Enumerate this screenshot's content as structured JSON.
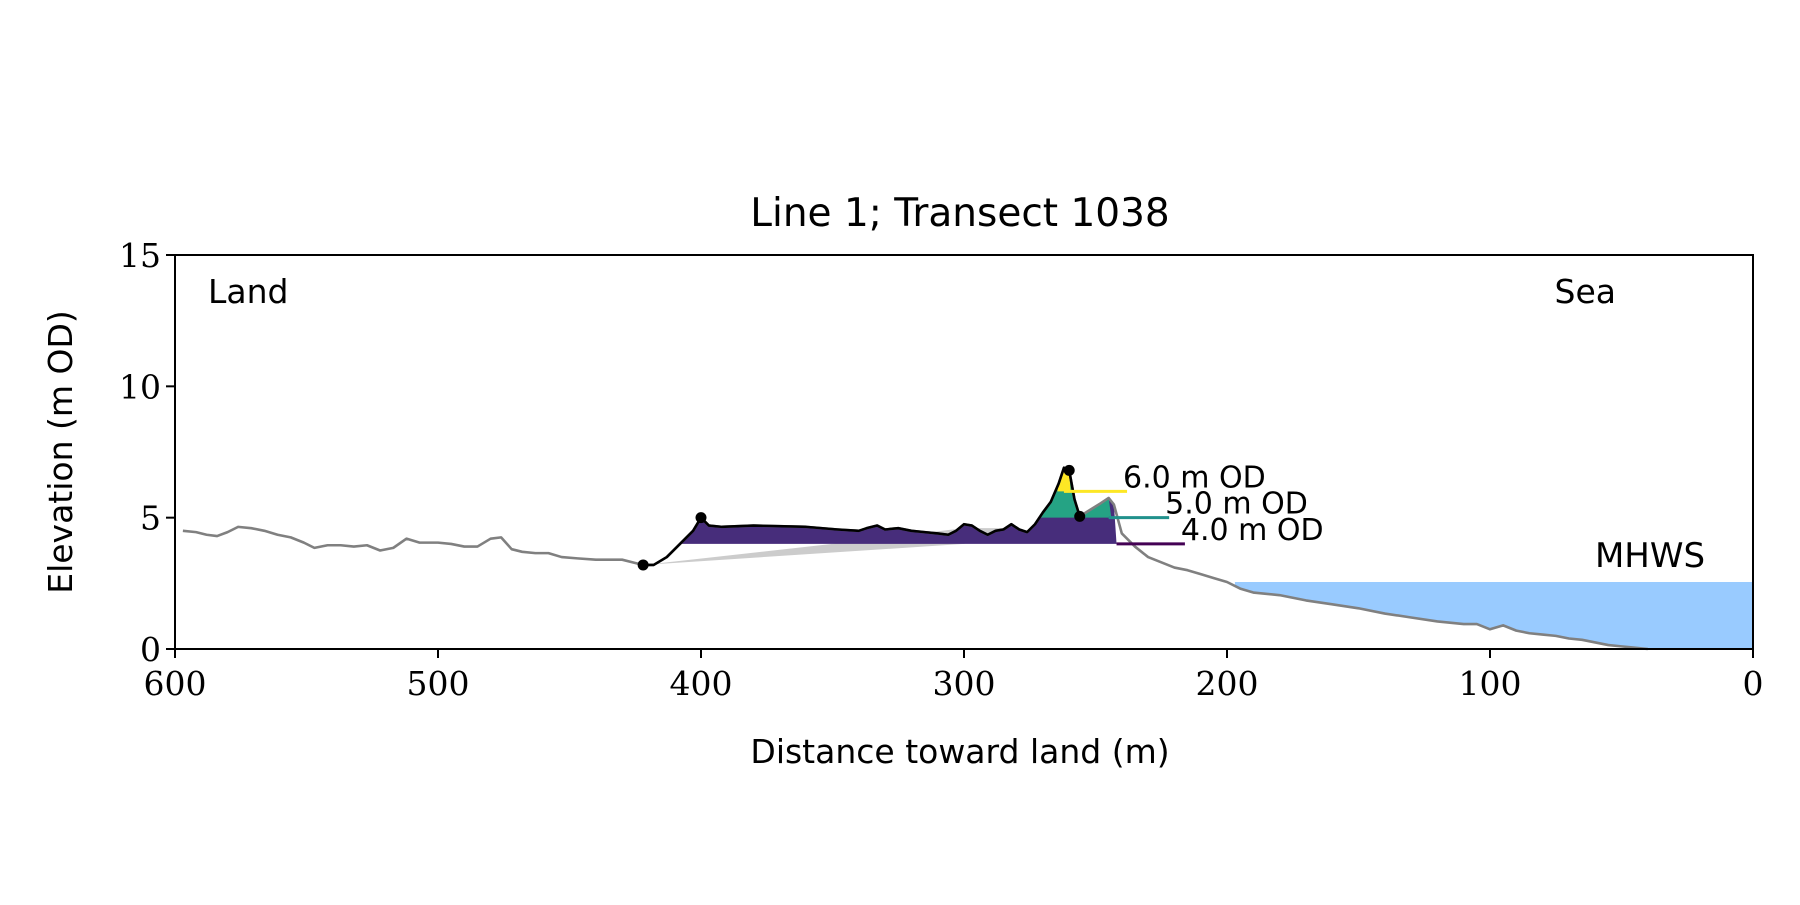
{
  "chart_data": {
    "type": "area",
    "title": "Line 1; Transect 1038",
    "xlabel": "Distance toward land (m)",
    "ylabel": "Elevation (m OD)",
    "xlim": [
      600,
      0
    ],
    "ylim": [
      0,
      15
    ],
    "x_ticks": [
      600,
      500,
      400,
      300,
      200,
      100,
      0
    ],
    "y_ticks": [
      0,
      5,
      10,
      15
    ],
    "grid": false,
    "corner_labels": {
      "land": "Land",
      "sea": "Sea"
    },
    "mhws": {
      "label": "MHWS",
      "elevation": 2.55,
      "x_start": 197,
      "x_end": 0
    },
    "thresholds": [
      {
        "label": "4.0 m OD",
        "elevation": 4.0,
        "x_start": 242,
        "x_end": 216,
        "color": "#440154"
      },
      {
        "label": "5.0 m OD",
        "elevation": 5.0,
        "x_start": 245,
        "x_end": 222,
        "color": "#21918c"
      },
      {
        "label": "6.0 m OD",
        "elevation": 6.0,
        "x_start": 262,
        "x_end": 238,
        "color": "#fde725"
      }
    ],
    "fill_colors": {
      "4.0": "#472d7b",
      "5.0": "#25a384",
      "6.0": "#fde725",
      "baseline_wedge": "#cccccc",
      "mhws": "#99cbff"
    },
    "profile": [
      [
        597,
        4.5
      ],
      [
        592,
        4.45
      ],
      [
        588,
        4.35
      ],
      [
        584,
        4.3
      ],
      [
        580,
        4.45
      ],
      [
        576,
        4.65
      ],
      [
        571,
        4.6
      ],
      [
        566,
        4.5
      ],
      [
        561,
        4.35
      ],
      [
        556,
        4.25
      ],
      [
        551,
        4.05
      ],
      [
        547,
        3.85
      ],
      [
        542,
        3.95
      ],
      [
        537,
        3.95
      ],
      [
        532,
        3.9
      ],
      [
        527,
        3.95
      ],
      [
        522,
        3.75
      ],
      [
        517,
        3.85
      ],
      [
        512,
        4.2
      ],
      [
        507,
        4.05
      ],
      [
        500,
        4.05
      ],
      [
        495,
        4.0
      ],
      [
        490,
        3.9
      ],
      [
        485,
        3.9
      ],
      [
        480,
        4.2
      ],
      [
        476,
        4.25
      ],
      [
        472,
        3.8
      ],
      [
        468,
        3.7
      ],
      [
        463,
        3.65
      ],
      [
        458,
        3.65
      ],
      [
        453,
        3.5
      ],
      [
        447,
        3.45
      ],
      [
        440,
        3.4
      ],
      [
        430,
        3.4
      ],
      [
        422,
        3.2
      ],
      [
        418,
        3.2
      ],
      [
        413,
        3.5
      ],
      [
        408,
        4.0
      ],
      [
        403,
        4.5
      ],
      [
        400,
        5.0
      ],
      [
        397,
        4.7
      ],
      [
        392,
        4.65
      ],
      [
        380,
        4.7
      ],
      [
        360,
        4.65
      ],
      [
        348,
        4.55
      ],
      [
        340,
        4.5
      ],
      [
        337,
        4.6
      ],
      [
        333,
        4.7
      ],
      [
        330,
        4.55
      ],
      [
        325,
        4.6
      ],
      [
        320,
        4.5
      ],
      [
        315,
        4.45
      ],
      [
        310,
        4.4
      ],
      [
        306,
        4.35
      ],
      [
        303,
        4.5
      ],
      [
        300,
        4.75
      ],
      [
        297,
        4.7
      ],
      [
        294,
        4.5
      ],
      [
        291,
        4.35
      ],
      [
        288,
        4.5
      ],
      [
        285,
        4.55
      ],
      [
        282,
        4.75
      ],
      [
        279,
        4.55
      ],
      [
        276,
        4.45
      ],
      [
        273,
        4.75
      ],
      [
        270,
        5.2
      ],
      [
        267,
        5.6
      ],
      [
        264,
        6.3
      ],
      [
        262,
        6.9
      ],
      [
        260,
        6.8
      ],
      [
        258,
        5.7
      ],
      [
        256,
        5.05
      ],
      [
        252,
        5.3
      ],
      [
        248,
        5.55
      ],
      [
        245,
        5.75
      ],
      [
        243,
        5.5
      ],
      [
        240,
        4.4
      ],
      [
        235,
        3.9
      ],
      [
        230,
        3.5
      ],
      [
        225,
        3.3
      ],
      [
        220,
        3.1
      ],
      [
        215,
        3.0
      ],
      [
        210,
        2.85
      ],
      [
        205,
        2.7
      ],
      [
        200,
        2.55
      ],
      [
        195,
        2.3
      ],
      [
        190,
        2.15
      ],
      [
        180,
        2.05
      ],
      [
        170,
        1.85
      ],
      [
        160,
        1.7
      ],
      [
        150,
        1.55
      ],
      [
        140,
        1.35
      ],
      [
        130,
        1.2
      ],
      [
        120,
        1.05
      ],
      [
        110,
        0.95
      ],
      [
        105,
        0.95
      ],
      [
        100,
        0.75
      ],
      [
        95,
        0.9
      ],
      [
        90,
        0.7
      ],
      [
        85,
        0.6
      ],
      [
        80,
        0.55
      ],
      [
        75,
        0.5
      ],
      [
        70,
        0.4
      ],
      [
        65,
        0.35
      ],
      [
        60,
        0.25
      ],
      [
        55,
        0.15
      ],
      [
        50,
        0.1
      ],
      [
        45,
        0.05
      ],
      [
        40,
        0.0
      ]
    ],
    "dune_points": [
      [
        422,
        3.2
      ],
      [
        400,
        5.0
      ],
      [
        260,
        6.8
      ],
      [
        256,
        5.05
      ]
    ]
  }
}
